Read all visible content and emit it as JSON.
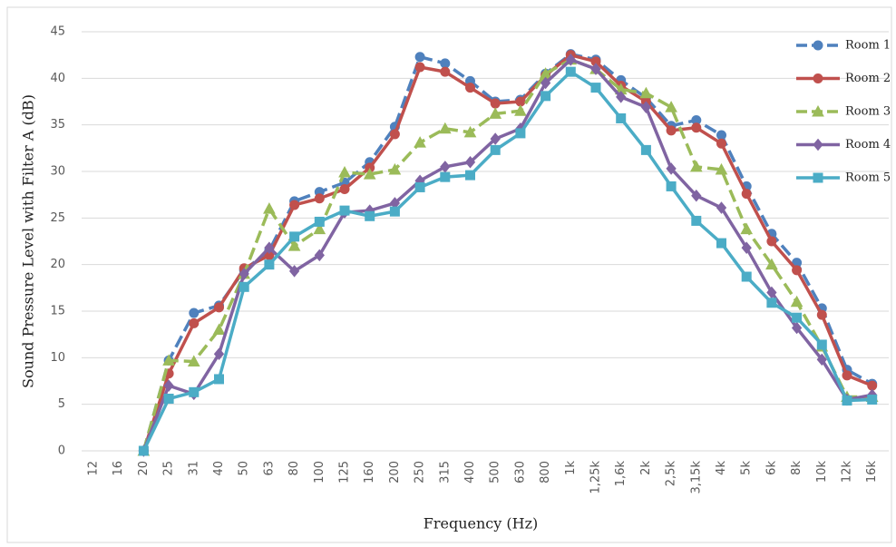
{
  "chart_data": {
    "type": "line",
    "ylabel": "Sound Pressure Level with Filter A (dB)",
    "xlabel": "Frequency (Hz)",
    "categories": [
      "12",
      "16",
      "20",
      "25",
      "31",
      "40",
      "50",
      "63",
      "80",
      "100",
      "125",
      "160",
      "200",
      "250",
      "315",
      "400",
      "500",
      "630",
      "800",
      "1k",
      "1,25k",
      "1,6k",
      "2k",
      "2,5k",
      "3,15k",
      "4k",
      "5k",
      "6k",
      "8k",
      "10k",
      "12k",
      "16k"
    ],
    "ylim": [
      0,
      45
    ],
    "yticks": [
      0,
      5,
      10,
      15,
      20,
      25,
      30,
      35,
      40,
      45
    ],
    "grid": true,
    "series": [
      {
        "name": "Room 1",
        "color": "#4f81bd",
        "dashed": true,
        "marker": "circle",
        "values": [
          null,
          null,
          0,
          9.7,
          14.8,
          15.6,
          19.4,
          21.5,
          26.8,
          27.8,
          28.8,
          31,
          34.8,
          42.3,
          41.6,
          39.7,
          37.5,
          37.7,
          40.5,
          42.6,
          42,
          39.8,
          37.9,
          34.9,
          35.5,
          33.9,
          28.4,
          23.3,
          20.2,
          15.3,
          8.7,
          7.2
        ]
      },
      {
        "name": "Room 2",
        "color": "#c0504d",
        "dashed": false,
        "marker": "circle",
        "values": [
          null,
          null,
          0,
          8.3,
          13.7,
          15.4,
          19.6,
          21,
          26.4,
          27.1,
          28.1,
          30.4,
          34,
          41.2,
          40.7,
          39,
          37.3,
          37.5,
          40.3,
          42.5,
          41.8,
          39.2,
          37.5,
          34.4,
          34.7,
          33,
          27.6,
          22.5,
          19.4,
          14.6,
          8.1,
          7
        ]
      },
      {
        "name": "Room 3",
        "color": "#9bbb59",
        "dashed": true,
        "marker": "triangle",
        "values": [
          null,
          null,
          0,
          9.7,
          9.6,
          13,
          19,
          26,
          22,
          23.8,
          29.9,
          29.7,
          30.2,
          33.1,
          34.6,
          34.2,
          36.2,
          36.5,
          40.5,
          42,
          41,
          38.8,
          38.4,
          36.9,
          30.5,
          30.2,
          23.8,
          20,
          16,
          11.2,
          5.8,
          5.8
        ]
      },
      {
        "name": "Room 4",
        "color": "#8064a2",
        "dashed": false,
        "marker": "diamond",
        "values": [
          null,
          null,
          0,
          7,
          6.1,
          10.4,
          19,
          21.8,
          19.3,
          21,
          25.6,
          25.8,
          26.6,
          29,
          30.5,
          31,
          33.5,
          34.6,
          39.5,
          42,
          41,
          38,
          36.9,
          30.3,
          27.4,
          26.1,
          21.8,
          17,
          13.2,
          9.8,
          5.5,
          6
        ]
      },
      {
        "name": "Room 5",
        "color": "#4bacc6",
        "dashed": false,
        "marker": "square",
        "values": [
          null,
          null,
          0,
          5.6,
          6.3,
          7.7,
          17.6,
          20,
          23,
          24.6,
          25.8,
          25.2,
          25.7,
          28.3,
          29.4,
          29.6,
          32.3,
          34.1,
          38.1,
          40.7,
          39,
          35.7,
          32.3,
          28.4,
          24.7,
          22.3,
          18.7,
          15.9,
          14.3,
          11.4,
          5.4,
          5.5
        ]
      }
    ]
  }
}
